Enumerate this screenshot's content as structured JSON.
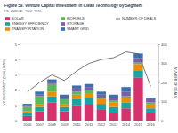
{
  "chart_data": {
    "type": "bar",
    "stacked": true,
    "title": "Figure 59. Venture Capital Investment in Clean Technology by Segment",
    "subtitle": "US, ANNUAL, 2006–2016",
    "y_label": "VC INVESTMENT ($ BILLIONS)",
    "y2_label": "NUMBER OF DEALS",
    "categories": [
      "2006",
      "2007",
      "2008",
      "2009",
      "2010",
      "2011",
      "2012",
      "2013",
      "2014",
      "2015",
      "2016"
    ],
    "series": [
      {
        "name": "SOLAR",
        "color": "#d6336c",
        "values": [
          0.3,
          0.6,
          1.2,
          0.6,
          1.0,
          1.1,
          0.7,
          0.5,
          0.8,
          2.8,
          0.5
        ]
      },
      {
        "name": "ENERGY EFFICIENCY",
        "color": "#1aa3a3",
        "values": [
          0.2,
          0.3,
          0.4,
          0.3,
          0.4,
          0.4,
          0.4,
          0.4,
          0.4,
          0.5,
          0.3
        ]
      },
      {
        "name": "TRANSPORTATION",
        "color": "#f08c00",
        "values": [
          0.1,
          0.2,
          0.3,
          0.2,
          0.3,
          0.3,
          0.3,
          0.3,
          0.3,
          0.4,
          0.3
        ]
      },
      {
        "name": "BIOFUELS",
        "color": "#5cb85c",
        "values": [
          0.3,
          0.5,
          0.5,
          0.3,
          0.2,
          0.2,
          0.1,
          0.1,
          0.1,
          0.1,
          0.1
        ]
      },
      {
        "name": "STORAGE",
        "color": "#7b5ea7",
        "values": [
          0.1,
          0.1,
          0.1,
          0.1,
          0.2,
          0.2,
          0.2,
          0.2,
          0.3,
          0.3,
          0.2
        ]
      },
      {
        "name": "SMART GRID",
        "color": "#3a6fb0",
        "values": [
          0.1,
          0.2,
          0.2,
          0.2,
          0.2,
          0.2,
          0.2,
          0.2,
          0.3,
          0.3,
          0.1
        ]
      },
      {
        "name": "NUMBER OF DEALS",
        "color": "#555555",
        "type": "line",
        "axis": "y2",
        "values": [
          150,
          200,
          240,
          210,
          260,
          300,
          320,
          330,
          360,
          350,
          180
        ]
      }
    ],
    "ylim": [
      0,
      5
    ],
    "yticks": [
      0,
      1,
      2,
      3,
      4,
      5
    ],
    "y2lim": [
      0,
      400
    ],
    "y2ticks": [
      0,
      100,
      200,
      300,
      400
    ],
    "grid": true,
    "legend": "top"
  }
}
